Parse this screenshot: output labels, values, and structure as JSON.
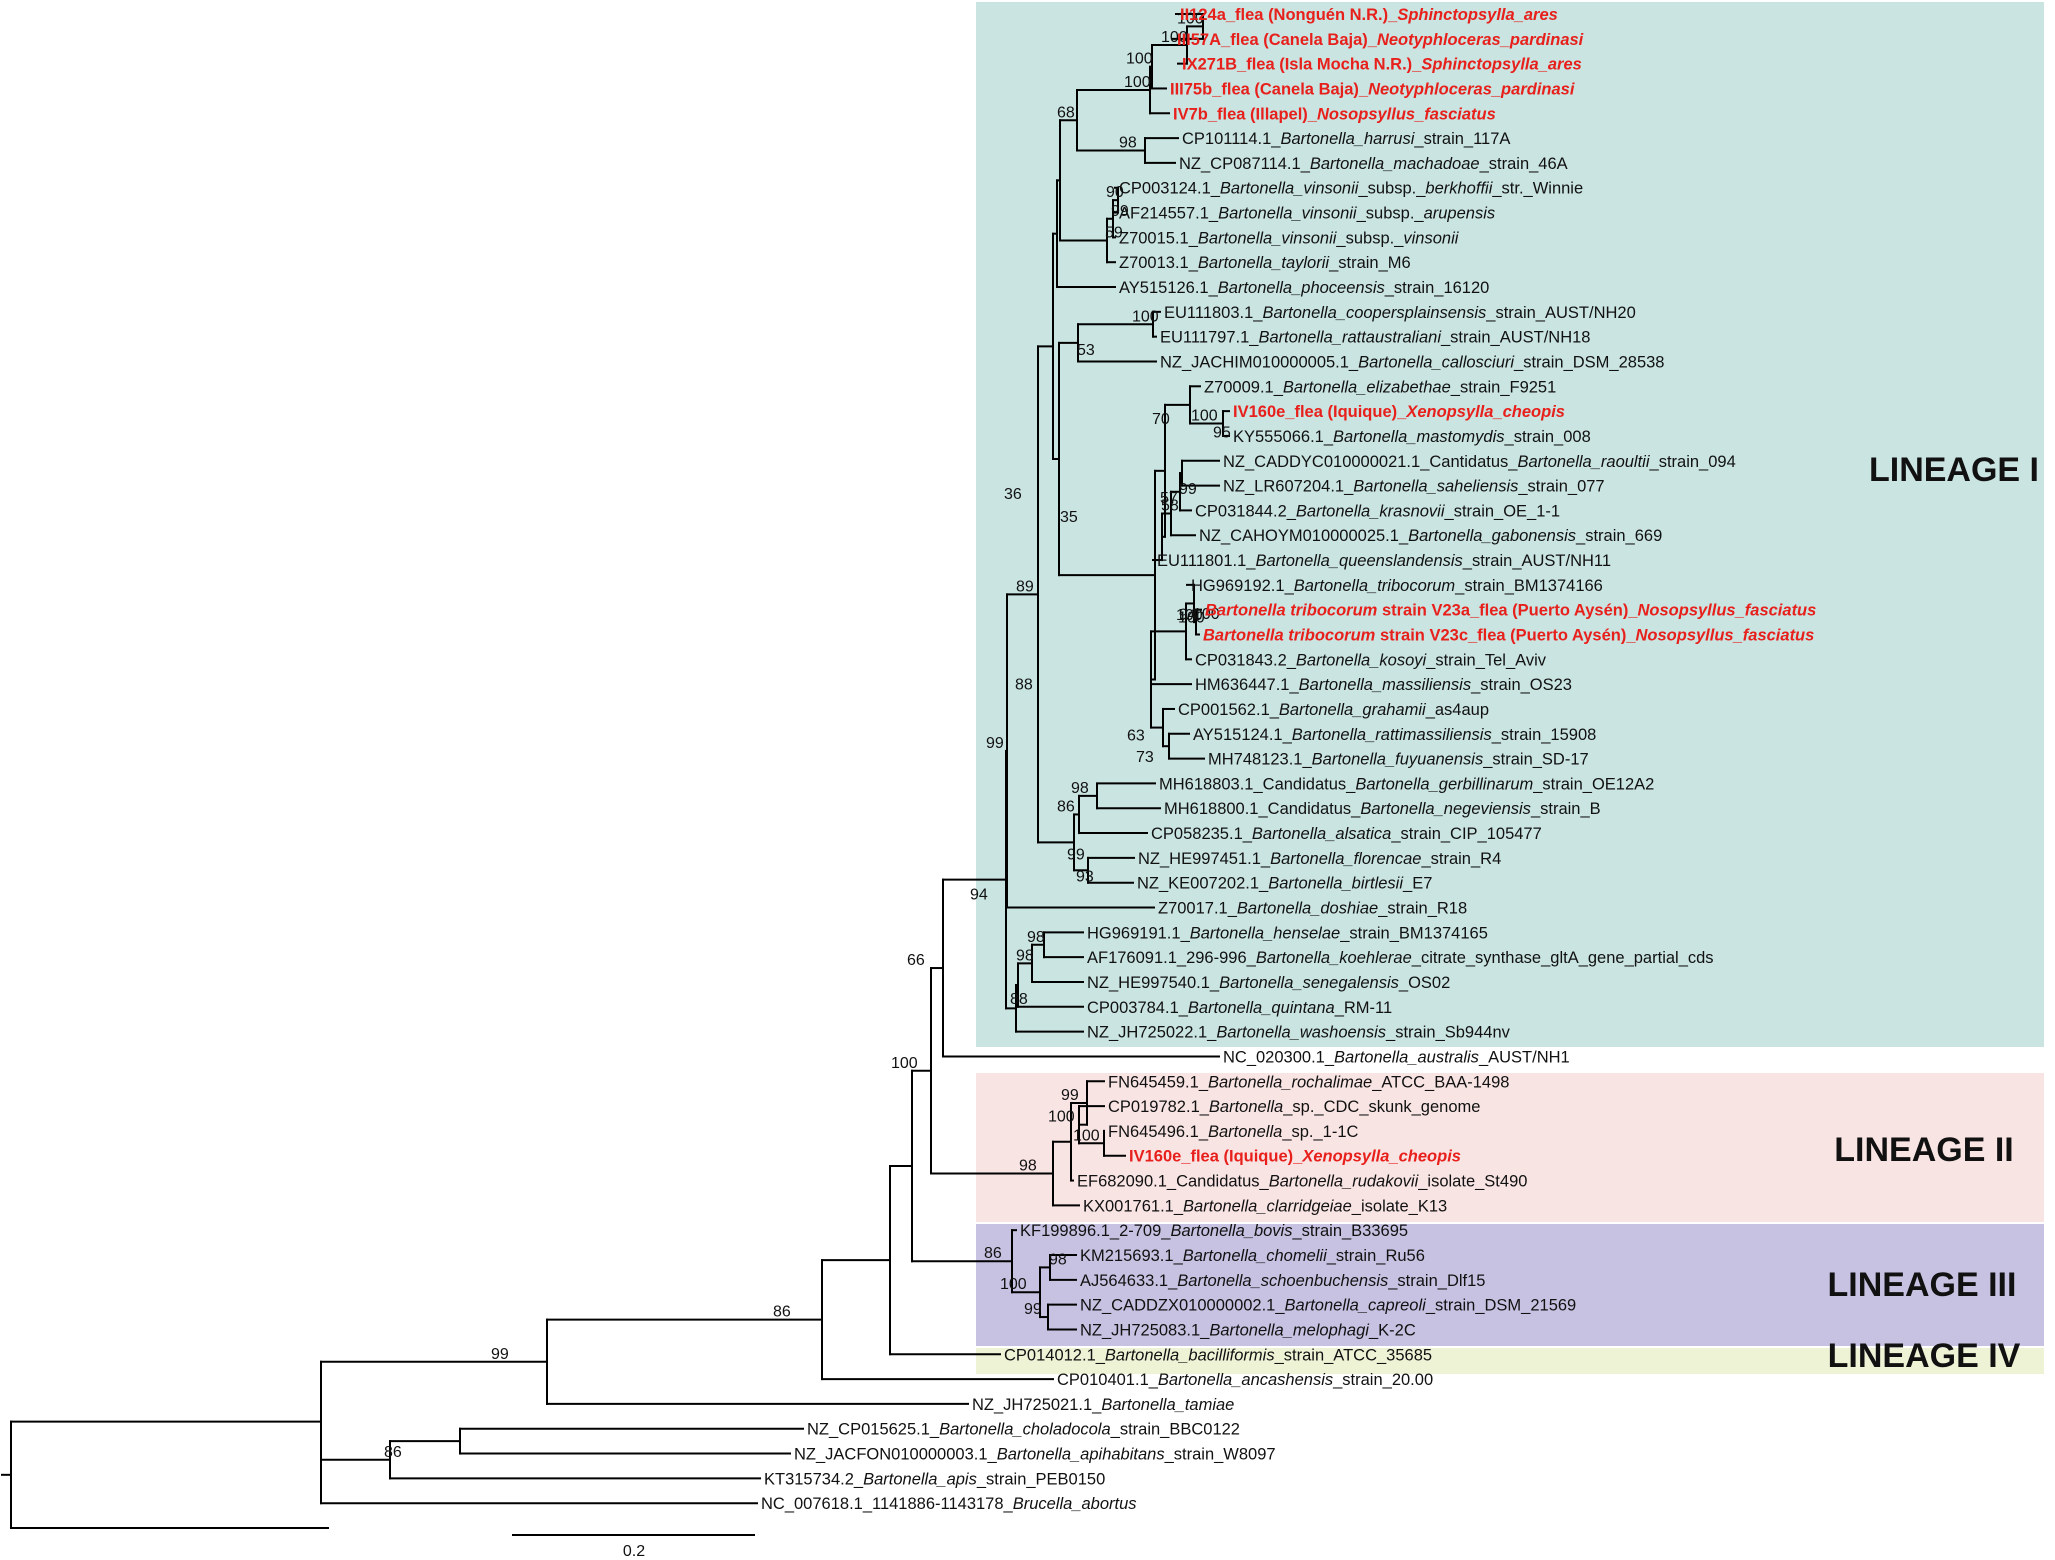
{
  "colors": {
    "lineage_I": "#c9e4e1",
    "lineage_II": "#f9e4e4",
    "lineage_III": "#c8c2e2",
    "lineage_IV": "#eef3d6",
    "highlight_text": "#e8201c",
    "branch": "#000000"
  },
  "lineages": [
    {
      "label": "LINEAGE I",
      "color": "lineage_I"
    },
    {
      "label": "LINEAGE II",
      "color": "lineage_II"
    },
    {
      "label": "LINEAGE III",
      "color": "lineage_III"
    },
    {
      "label": "LINEAGE IV",
      "color": "lineage_IV"
    }
  ],
  "scale_bar": {
    "label": "0.2",
    "length_units": 0.2
  },
  "tree": {
    "leaves": [
      {
        "parts": [
          [
            "II124a_flea (Nonguén N.R.)_",
            ""
          ],
          [
            "Sphinctopsylla_ares",
            "i"
          ]
        ],
        "hl": true
      },
      {
        "parts": [
          [
            "III57A_flea (Canela Baja)_",
            ""
          ],
          [
            "Neotyphloceras_pardinasi",
            "i"
          ]
        ],
        "hl": true
      },
      {
        "parts": [
          [
            "IX271B_flea (Isla Mocha N.R.)_",
            ""
          ],
          [
            "Sphinctopsylla_ares",
            "i"
          ]
        ],
        "hl": true
      },
      {
        "parts": [
          [
            "III75b_flea (Canela Baja)_",
            ""
          ],
          [
            "Neotyphloceras_pardinasi",
            "i"
          ]
        ],
        "hl": true
      },
      {
        "parts": [
          [
            "IV7b_flea (Illapel)_",
            ""
          ],
          [
            "Nosopsyllus_fasciatus",
            "i"
          ]
        ],
        "hl": true
      },
      {
        "parts": [
          [
            "CP101114.1_",
            ""
          ],
          [
            "Bartonella_harrusi",
            "i"
          ],
          [
            "_strain_117A",
            ""
          ]
        ]
      },
      {
        "parts": [
          [
            "NZ_CP087114.1_",
            ""
          ],
          [
            "Bartonella_machadoae",
            "i"
          ],
          [
            "_strain_46A",
            ""
          ]
        ]
      },
      {
        "parts": [
          [
            "CP003124.1_",
            ""
          ],
          [
            "Bartonella_vinsonii",
            "i"
          ],
          [
            "_subsp._",
            ""
          ],
          [
            "berkhoffii",
            "i"
          ],
          [
            "_str._Winnie",
            ""
          ]
        ]
      },
      {
        "parts": [
          [
            "AF214557.1_",
            ""
          ],
          [
            "Bartonella_vinsonii",
            "i"
          ],
          [
            "_subsp._",
            ""
          ],
          [
            "arupensis",
            "i"
          ]
        ]
      },
      {
        "parts": [
          [
            "Z70015.1_",
            ""
          ],
          [
            "Bartonella_vinsonii",
            "i"
          ],
          [
            "_subsp._",
            ""
          ],
          [
            "vinsonii",
            "i"
          ]
        ]
      },
      {
        "parts": [
          [
            "Z70013.1_",
            ""
          ],
          [
            "Bartonella_taylorii",
            "i"
          ],
          [
            "_strain_M6",
            ""
          ]
        ]
      },
      {
        "parts": [
          [
            "AY515126.1_",
            ""
          ],
          [
            "Bartonella_phoceensis",
            "i"
          ],
          [
            "_strain_16120",
            ""
          ]
        ]
      },
      {
        "parts": [
          [
            "EU111803.1_",
            ""
          ],
          [
            "Bartonella_coopersplainsensis",
            "i"
          ],
          [
            "_strain_AUST/NH20",
            ""
          ]
        ]
      },
      {
        "parts": [
          [
            "EU111797.1_",
            ""
          ],
          [
            "Bartonella_rattaustraliani",
            "i"
          ],
          [
            "_strain_AUST/NH18",
            ""
          ]
        ]
      },
      {
        "parts": [
          [
            "NZ_JACHIM010000005.1_",
            ""
          ],
          [
            "Bartonella_callosciuri",
            "i"
          ],
          [
            "_strain_DSM_28538",
            ""
          ]
        ]
      },
      {
        "parts": [
          [
            "Z70009.1_",
            ""
          ],
          [
            "Bartonella_elizabethae",
            "i"
          ],
          [
            "_strain_F9251",
            ""
          ]
        ]
      },
      {
        "parts": [
          [
            "IV160e_flea (Iquique)_",
            ""
          ],
          [
            "Xenopsylla_cheopis",
            "i"
          ]
        ],
        "hl": true
      },
      {
        "parts": [
          [
            "KY555066.1_",
            ""
          ],
          [
            "Bartonella_mastomydis",
            "i"
          ],
          [
            "_strain_008",
            ""
          ]
        ]
      },
      {
        "parts": [
          [
            "NZ_CADDYC010000021.1_Cantidatus_",
            ""
          ],
          [
            "Bartonella_raoultii",
            "i"
          ],
          [
            "_strain_094",
            ""
          ]
        ]
      },
      {
        "parts": [
          [
            "NZ_LR607204.1_",
            ""
          ],
          [
            "Bartonella_saheliensis",
            "i"
          ],
          [
            "_strain_077",
            ""
          ]
        ]
      },
      {
        "parts": [
          [
            "CP031844.2_",
            ""
          ],
          [
            "Bartonella_krasnovii",
            "i"
          ],
          [
            "_strain_OE_1-1",
            ""
          ]
        ]
      },
      {
        "parts": [
          [
            "NZ_CAHOYM010000025.1_",
            ""
          ],
          [
            "Bartonella_gabonensis",
            "i"
          ],
          [
            "_strain_669",
            ""
          ]
        ]
      },
      {
        "parts": [
          [
            "EU111801.1_",
            ""
          ],
          [
            "Bartonella_queenslandensis",
            "i"
          ],
          [
            "_strain_AUST/NH11",
            ""
          ]
        ]
      },
      {
        "parts": [
          [
            "HG969192.1_",
            ""
          ],
          [
            "Bartonella_tribocorum",
            "i"
          ],
          [
            "_strain_BM1374166",
            ""
          ]
        ]
      },
      {
        "parts": [
          [
            "Bartonella tribocorum",
            "i"
          ],
          [
            " strain V23a_flea (Puerto Aysén)_",
            ""
          ],
          [
            "Nosopsyllus_fasciatus",
            "i"
          ]
        ],
        "hl": true
      },
      {
        "parts": [
          [
            "Bartonella tribocorum",
            "i"
          ],
          [
            " strain V23c_flea (Puerto Aysén)_",
            ""
          ],
          [
            "Nosopsyllus_fasciatus",
            "i"
          ]
        ],
        "hl": true
      },
      {
        "parts": [
          [
            "CP031843.2_",
            ""
          ],
          [
            "Bartonella_kosoyi",
            "i"
          ],
          [
            "_strain_Tel_Aviv",
            ""
          ]
        ]
      },
      {
        "parts": [
          [
            "HM636447.1_",
            ""
          ],
          [
            "Bartonella_massiliensis",
            "i"
          ],
          [
            "_strain_OS23",
            ""
          ]
        ]
      },
      {
        "parts": [
          [
            "CP001562.1_",
            ""
          ],
          [
            "Bartonella_grahamii",
            "i"
          ],
          [
            "_as4aup",
            ""
          ]
        ]
      },
      {
        "parts": [
          [
            "AY515124.1_",
            ""
          ],
          [
            "Bartonella_rattimassiliensis",
            "i"
          ],
          [
            "_strain_15908",
            ""
          ]
        ]
      },
      {
        "parts": [
          [
            "MH748123.1_",
            ""
          ],
          [
            "Bartonella_fuyuanensis",
            "i"
          ],
          [
            "_strain_SD-17",
            ""
          ]
        ]
      },
      {
        "parts": [
          [
            "MH618803.1_Candidatus_",
            ""
          ],
          [
            "Bartonella_gerbillinarum",
            "i"
          ],
          [
            "_strain_OE12A2",
            ""
          ]
        ]
      },
      {
        "parts": [
          [
            "MH618800.1_Candidatus_",
            ""
          ],
          [
            "Bartonella_negeviensis",
            "i"
          ],
          [
            "_strain_B",
            ""
          ]
        ]
      },
      {
        "parts": [
          [
            "CP058235.1_",
            ""
          ],
          [
            "Bartonella_alsatica",
            "i"
          ],
          [
            "_strain_CIP_105477",
            ""
          ]
        ]
      },
      {
        "parts": [
          [
            "NZ_HE997451.1_",
            ""
          ],
          [
            "Bartonella_florencae",
            "i"
          ],
          [
            "_strain_R4",
            ""
          ]
        ]
      },
      {
        "parts": [
          [
            "NZ_KE007202.1_",
            ""
          ],
          [
            "Bartonella_birtlesii",
            "i"
          ],
          [
            "_E7",
            ""
          ]
        ]
      },
      {
        "parts": [
          [
            "Z70017.1_",
            ""
          ],
          [
            "Bartonella_doshiae",
            "i"
          ],
          [
            "_strain_R18",
            ""
          ]
        ]
      },
      {
        "parts": [
          [
            "HG969191.1_",
            ""
          ],
          [
            "Bartonella_henselae",
            "i"
          ],
          [
            "_strain_BM1374165",
            ""
          ]
        ]
      },
      {
        "parts": [
          [
            "AF176091.1_296-996_",
            ""
          ],
          [
            "Bartonella_koehlerae",
            "i"
          ],
          [
            "_citrate_synthase_gltA_gene_partial_cds",
            ""
          ]
        ]
      },
      {
        "parts": [
          [
            "NZ_HE997540.1_",
            ""
          ],
          [
            "Bartonella_senegalensis",
            "i"
          ],
          [
            "_OS02",
            ""
          ]
        ]
      },
      {
        "parts": [
          [
            "CP003784.1_",
            ""
          ],
          [
            "Bartonella_quintana",
            "i"
          ],
          [
            "_RM-11",
            ""
          ]
        ]
      },
      {
        "parts": [
          [
            "NZ_JH725022.1_",
            ""
          ],
          [
            "Bartonella_washoensis",
            "i"
          ],
          [
            "_strain_Sb944nv",
            ""
          ]
        ]
      },
      {
        "parts": [
          [
            "NC_020300.1_",
            ""
          ],
          [
            "Bartonella_australis",
            "i"
          ],
          [
            "_AUST/NH1",
            ""
          ]
        ]
      },
      {
        "parts": [
          [
            "FN645459.1_",
            ""
          ],
          [
            "Bartonella_rochalimae",
            "i"
          ],
          [
            "_ATCC_BAA-1498",
            ""
          ]
        ]
      },
      {
        "parts": [
          [
            "CP019782.1_",
            ""
          ],
          [
            "Bartonella",
            "i"
          ],
          [
            "_sp._CDC_skunk_genome",
            ""
          ]
        ]
      },
      {
        "parts": [
          [
            "FN645496.1_",
            ""
          ],
          [
            "Bartonella",
            "i"
          ],
          [
            "_sp._1-1C",
            ""
          ]
        ]
      },
      {
        "parts": [
          [
            "IV160e_flea (Iquique)_",
            ""
          ],
          [
            "Xenopsylla_cheopis",
            "i"
          ]
        ],
        "hl": true
      },
      {
        "parts": [
          [
            "EF682090.1_Candidatus_",
            ""
          ],
          [
            "Bartonella_rudakovii",
            "i"
          ],
          [
            "_isolate_St490",
            ""
          ]
        ]
      },
      {
        "parts": [
          [
            "KX001761.1_",
            ""
          ],
          [
            "Bartonella_clarridgeiae",
            "i"
          ],
          [
            "_isolate_K13",
            ""
          ]
        ]
      },
      {
        "parts": [
          [
            "KF199896.1_2-709_",
            ""
          ],
          [
            "Bartonella_bovis",
            "i"
          ],
          [
            "_strain_B33695",
            ""
          ]
        ]
      },
      {
        "parts": [
          [
            "KM215693.1_",
            ""
          ],
          [
            "Bartonella_chomelii",
            "i"
          ],
          [
            "_strain_Ru56",
            ""
          ]
        ]
      },
      {
        "parts": [
          [
            "AJ564633.1_",
            ""
          ],
          [
            "Bartonella_schoenbuchensis",
            "i"
          ],
          [
            "_strain_Dlf15",
            ""
          ]
        ]
      },
      {
        "parts": [
          [
            "NZ_CADDZX010000002.1_",
            ""
          ],
          [
            "Bartonella_capreoli",
            "i"
          ],
          [
            "_strain_DSM_21569",
            ""
          ]
        ]
      },
      {
        "parts": [
          [
            "NZ_JH725083.1_",
            ""
          ],
          [
            "Bartonella_melophagi",
            "i"
          ],
          [
            "_K-2C",
            ""
          ]
        ]
      },
      {
        "parts": [
          [
            "CP014012.1_",
            ""
          ],
          [
            "Bartonella_bacilliformis",
            "i"
          ],
          [
            "_strain_ATCC_35685",
            ""
          ]
        ]
      },
      {
        "parts": [
          [
            "CP010401.1_",
            ""
          ],
          [
            "Bartonella_ancashensis",
            "i"
          ],
          [
            "_strain_20.00",
            ""
          ]
        ]
      },
      {
        "parts": [
          [
            "NZ_JH725021.1_",
            ""
          ],
          [
            "Bartonella_tamiae",
            "i"
          ]
        ]
      },
      {
        "parts": [
          [
            "NZ_CP015625.1_",
            ""
          ],
          [
            "Bartonella_choladocola",
            "i"
          ],
          [
            "_strain_BBC0122",
            ""
          ]
        ]
      },
      {
        "parts": [
          [
            "NZ_JACFON010000003.1_",
            ""
          ],
          [
            "Bartonella_apihabitans",
            "i"
          ],
          [
            "_strain_W8097",
            ""
          ]
        ]
      },
      {
        "parts": [
          [
            "KT315734.2_",
            ""
          ],
          [
            "Bartonella_apis",
            "i"
          ],
          [
            "_strain_PEB0150",
            ""
          ]
        ]
      },
      {
        "parts": [
          [
            "NC_007618.1_1141886-1143178_",
            ""
          ],
          [
            "Brucella_abortus",
            "i"
          ]
        ]
      }
    ],
    "support_values": [
      "100",
      "100",
      "100",
      "100",
      "98",
      "68",
      "90",
      "99",
      "59",
      "100",
      "53",
      "36",
      "100",
      "95",
      "70",
      "99",
      "57",
      "58",
      "35",
      "94",
      "100",
      "100",
      "100",
      "63",
      "73",
      "88",
      "98",
      "86",
      "99",
      "93",
      "89",
      "99",
      "98",
      "98",
      "88",
      "94",
      "66",
      "99",
      "100",
      "100",
      "98",
      "100",
      "98",
      "100",
      "86",
      "99",
      "99",
      "86",
      "86"
    ]
  }
}
